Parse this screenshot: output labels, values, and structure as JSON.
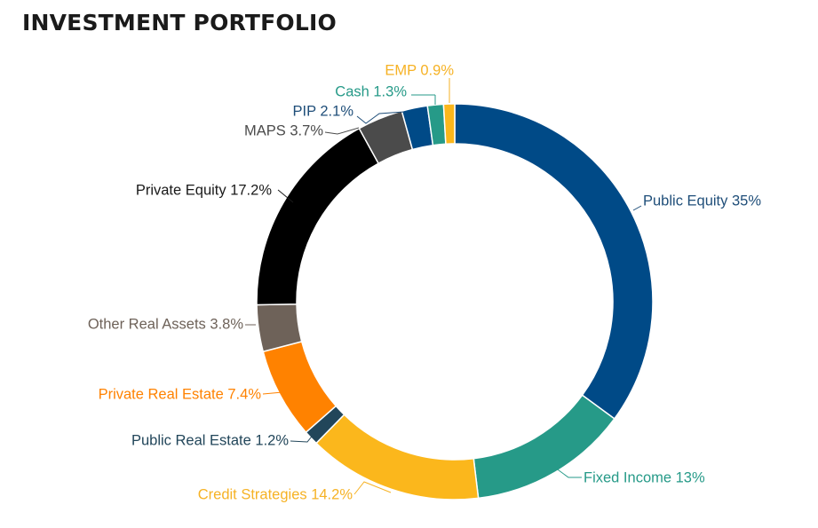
{
  "title": "INVESTMENT PORTFOLIO",
  "chart_data": {
    "type": "pie",
    "variant": "donut",
    "slices": [
      {
        "label": "Public Equity 35%",
        "value": 35.0,
        "color": "#004a87",
        "label_color": "#1f4e79",
        "leader_color": "#1f4e79"
      },
      {
        "label": "Fixed Income 13%",
        "value": 13.0,
        "color": "#269a88",
        "label_color": "#269a88",
        "leader_color": "#269a88"
      },
      {
        "label": "Credit Strategies 14.2%",
        "value": 14.2,
        "color": "#fbb71c",
        "label_color": "#f6b224",
        "leader_color": "#f6b224"
      },
      {
        "label": "Public Real Estate 1.2%",
        "value": 1.2,
        "color": "#22465a",
        "label_color": "#22465a",
        "leader_color": "#22465a"
      },
      {
        "label": "Private Real Estate 7.4%",
        "value": 7.4,
        "color": "#ff8200",
        "label_color": "#ff8200",
        "leader_color": "#ff8200"
      },
      {
        "label": "Other Real Assets 3.8%",
        "value": 3.8,
        "color": "#6e6259",
        "label_color": "#6e6259",
        "leader_color": "#6e6259"
      },
      {
        "label": "Private Equity 17.2%",
        "value": 17.2,
        "color": "#000000",
        "label_color": "#1a1a1a",
        "leader_color": "#1a1a1a"
      },
      {
        "label": "MAPS 3.7%",
        "value": 3.7,
        "color": "#4b4b4b",
        "label_color": "#4b4b4b",
        "leader_color": "#4b4b4b"
      },
      {
        "label": "PIP 2.1%",
        "value": 2.1,
        "color": "#004a87",
        "label_color": "#1f4e79",
        "leader_color": "#1f4e79"
      },
      {
        "label": "Cash 1.3%",
        "value": 1.3,
        "color": "#269a88",
        "label_color": "#269a88",
        "leader_color": "#269a88"
      },
      {
        "label": "EMP 0.9%",
        "value": 0.9,
        "color": "#fbb71c",
        "label_color": "#f6b224",
        "leader_color": "#f6b224"
      }
    ]
  }
}
